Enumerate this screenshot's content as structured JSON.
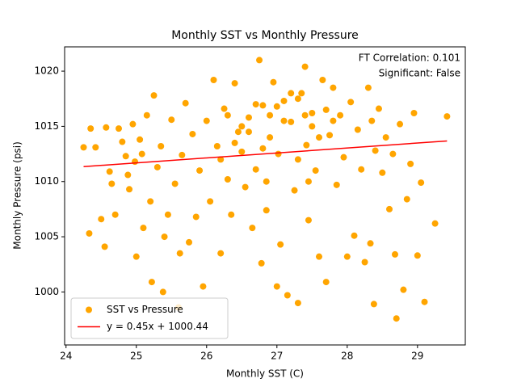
{
  "chart_data": {
    "type": "scatter",
    "title": "Monthly SST vs Monthly Pressure",
    "x_label": "Monthly SST (C)",
    "y_label": "Monthly Pressure (psi)",
    "annotations": [
      "FT Correlation: 0.101",
      "Significant: False"
    ],
    "xlim": [
      23.98,
      29.68
    ],
    "ylim": [
      995.2,
      1022.2
    ],
    "xticks": [
      24,
      25,
      26,
      27,
      28,
      29
    ],
    "yticks": [
      1000,
      1005,
      1010,
      1015,
      1020
    ],
    "legend": "lower left",
    "series": [
      {
        "name": "SST vs Pressure",
        "color": "orange",
        "type": "scatter",
        "x": [
          24.25,
          24.33,
          24.35,
          24.42,
          24.5,
          24.55,
          24.57,
          24.62,
          24.65,
          24.7,
          24.75,
          24.8,
          24.85,
          24.88,
          24.9,
          24.95,
          24.98,
          25.0,
          25.05,
          25.08,
          25.1,
          25.15,
          25.2,
          25.22,
          25.25,
          25.3,
          25.35,
          25.38,
          25.4,
          25.45,
          25.5,
          25.55,
          25.6,
          25.62,
          25.65,
          25.7,
          25.75,
          25.8,
          25.85,
          25.9,
          25.95,
          26.0,
          26.05,
          26.1,
          26.15,
          26.2,
          26.25,
          26.3,
          26.35,
          26.4,
          26.45,
          26.5,
          26.55,
          26.6,
          26.65,
          26.7,
          26.75,
          26.78,
          26.8,
          26.85,
          26.9,
          26.95,
          27.0,
          27.02,
          27.05,
          27.1,
          27.15,
          27.2,
          27.25,
          27.3,
          27.35,
          27.4,
          27.42,
          27.45,
          27.5,
          27.55,
          27.6,
          27.65,
          27.7,
          27.75,
          27.8,
          27.85,
          27.9,
          27.95,
          28.0,
          28.05,
          28.1,
          28.15,
          28.2,
          28.25,
          28.3,
          28.33,
          28.35,
          28.38,
          28.4,
          28.45,
          28.5,
          28.55,
          28.6,
          28.65,
          28.68,
          28.7,
          28.75,
          28.8,
          28.85,
          28.9,
          28.95,
          29.0,
          29.05,
          29.1,
          29.25,
          29.42,
          26.3,
          26.5,
          26.7,
          26.9,
          27.1,
          27.3,
          27.5,
          27.7,
          26.4,
          26.6,
          26.8,
          27.0,
          27.2,
          27.4,
          27.6,
          27.8,
          26.2,
          27.3,
          27.45,
          26.85
        ],
        "values": [
          1013.1,
          1005.3,
          1014.8,
          1013.1,
          1006.6,
          1004.1,
          1014.9,
          1010.9,
          1009.8,
          1007,
          1014.8,
          1013.6,
          1012.3,
          1010.6,
          1009.3,
          1015.2,
          1011.8,
          1003.2,
          1013.8,
          1012.5,
          1005.8,
          1016,
          1008.2,
          1000.9,
          1017.8,
          1011.3,
          1013.2,
          1000,
          1005,
          1007,
          1015.6,
          1009.8,
          998.6,
          1003.5,
          1012.4,
          1017.1,
          1004.5,
          1014.3,
          1006.8,
          1011,
          1000.5,
          1015.5,
          1008.2,
          1019.2,
          1013.2,
          1003.5,
          1016.6,
          1010.2,
          1007,
          1018.9,
          1014.5,
          1012.7,
          1009.5,
          1015.8,
          1005.8,
          1011.1,
          1021,
          1002.6,
          1016.9,
          1007.4,
          1014,
          1019,
          1000.5,
          1012.5,
          1004.3,
          1017.3,
          999.7,
          1015.4,
          1009.2,
          999,
          1018,
          1020.4,
          1013.3,
          1006.5,
          1016.2,
          1011,
          1003.2,
          1019.2,
          1000.9,
          1014.2,
          1018.5,
          1009.7,
          1016,
          1012.2,
          1003.2,
          1017.2,
          1005.1,
          1014.7,
          1011.1,
          1002.7,
          1018.5,
          1004.4,
          1015.5,
          998.9,
          1012.8,
          1016.6,
          1010.8,
          1014,
          1007.5,
          1012.5,
          1003.4,
          997.6,
          1015.2,
          1000.2,
          1008.4,
          1011.6,
          1016.2,
          1003.3,
          1009.9,
          999.1,
          1006.2,
          1015.9,
          1016,
          1015,
          1017,
          1016,
          1015.5,
          1017.5,
          1015,
          1016.5,
          1013.5,
          1014.5,
          1013,
          1016.8,
          1018,
          1016,
          1014,
          1015.5,
          1012,
          1012,
          1010,
          1010
        ]
      },
      {
        "name": "y = 0.45x + 1000.44",
        "color": "red",
        "type": "line",
        "x": [
          24.25,
          29.42
        ],
        "values": [
          1011.35,
          1013.68
        ]
      }
    ]
  }
}
